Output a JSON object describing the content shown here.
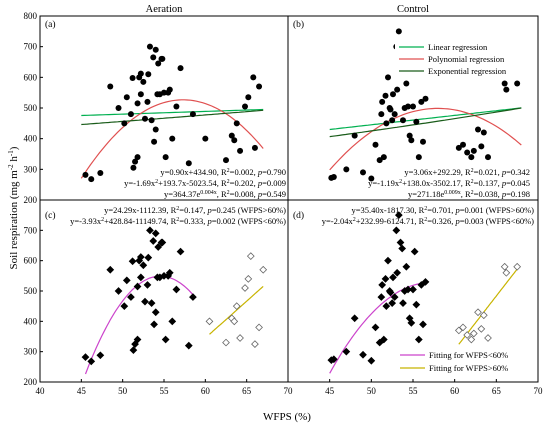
{
  "figure": {
    "ylabel_base": "Soil respiration (mg m",
    "ylabel_sup1": "-2",
    "ylabel_mid": " h",
    "ylabel_sup2": "-1",
    "ylabel_end": ")",
    "xlabel": "WFPS (%)"
  },
  "chart_data": [
    {
      "id": "a",
      "type": "scatter",
      "title": "Aeration",
      "panel_label": "(a)",
      "xlim": [
        40,
        70
      ],
      "ylim": [
        200,
        800
      ],
      "yticks": [
        200,
        300,
        400,
        500,
        600,
        700,
        800
      ],
      "points": [
        [
          45.5,
          282
        ],
        [
          46.2,
          268
        ],
        [
          47.3,
          288
        ],
        [
          48.5,
          570
        ],
        [
          49.5,
          500
        ],
        [
          50.2,
          450
        ],
        [
          50.5,
          535
        ],
        [
          51,
          480
        ],
        [
          51.2,
          598
        ],
        [
          51.3,
          305
        ],
        [
          51.5,
          325
        ],
        [
          51.8,
          340
        ],
        [
          51.8,
          515
        ],
        [
          52,
          600
        ],
        [
          52.2,
          545
        ],
        [
          52.2,
          612
        ],
        [
          52.5,
          585
        ],
        [
          52.7,
          465
        ],
        [
          53,
          520
        ],
        [
          53.1,
          610
        ],
        [
          53.3,
          700
        ],
        [
          53.5,
          460
        ],
        [
          53.7,
          665
        ],
        [
          53.8,
          390
        ],
        [
          54,
          690
        ],
        [
          54,
          430
        ],
        [
          54.2,
          545
        ],
        [
          54.3,
          645
        ],
        [
          54.5,
          545
        ],
        [
          54.7,
          660
        ],
        [
          54.8,
          660
        ],
        [
          55,
          550
        ],
        [
          55.2,
          340
        ],
        [
          55.5,
          550
        ],
        [
          55.7,
          560
        ],
        [
          56,
          400
        ],
        [
          56.5,
          505
        ],
        [
          57,
          630
        ],
        [
          58,
          320
        ],
        [
          58.5,
          480
        ],
        [
          60,
          400
        ],
        [
          62.5,
          330
        ],
        [
          63.2,
          410
        ],
        [
          63.5,
          395
        ],
        [
          63.8,
          450
        ],
        [
          64.2,
          360
        ],
        [
          64.8,
          505
        ],
        [
          65.2,
          535
        ],
        [
          65.8,
          600
        ],
        [
          66,
          370
        ],
        [
          66.5,
          570
        ]
      ],
      "fits": [
        {
          "name": "Linear regression",
          "color": "#00b050",
          "equation": "y=0.90x+434.90, R²=0.002, p=0.790"
        },
        {
          "name": "Polynomial regression",
          "color": "#e05050",
          "equation": "y=-1.69x²+193.7x-5023.54, R²=0.202, p=0.009"
        },
        {
          "name": "Exponential regression",
          "color": "#1a5c1a",
          "equation": "y=364.37e⁰·⁰⁰⁴ˣ, R²=0.008, p=0.549"
        }
      ],
      "eq_lines": [
        {
          "a": "y=0.90x+434.90, R",
          "b": "=0.002, ",
          "p": "p",
          "c": "=0.790"
        },
        {
          "a": "y=-1.69x",
          "a2": "+193.7x-5023.54, R",
          "b": "=0.202, ",
          "p": "p",
          "c": "=0.009"
        },
        {
          "a": "y=364.37e",
          "e": "0.004x",
          "a2": ", R",
          "b": "=0.008, ",
          "p": "p",
          "c": "=0.549"
        }
      ]
    },
    {
      "id": "b",
      "type": "scatter",
      "title": "Control",
      "panel_label": "(b)",
      "xlim": [
        40,
        70
      ],
      "ylim": [
        200,
        800
      ],
      "points": [
        [
          45.2,
          272
        ],
        [
          45.5,
          275
        ],
        [
          47,
          300
        ],
        [
          48,
          410
        ],
        [
          49,
          290
        ],
        [
          50,
          270
        ],
        [
          50.5,
          380
        ],
        [
          51,
          330
        ],
        [
          51.2,
          480
        ],
        [
          51.3,
          520
        ],
        [
          51.5,
          340
        ],
        [
          51.7,
          540
        ],
        [
          51.8,
          450
        ],
        [
          52,
          600
        ],
        [
          52.2,
          500
        ],
        [
          52.3,
          495
        ],
        [
          52.5,
          460
        ],
        [
          52.6,
          545
        ],
        [
          52.8,
          480
        ],
        [
          53,
          700
        ],
        [
          53.1,
          560
        ],
        [
          53.3,
          750
        ],
        [
          53.5,
          660
        ],
        [
          53.7,
          640
        ],
        [
          53.8,
          460
        ],
        [
          54,
          500
        ],
        [
          54.2,
          580
        ],
        [
          54.4,
          505
        ],
        [
          54.6,
          410
        ],
        [
          54.8,
          395
        ],
        [
          55,
          505
        ],
        [
          55.2,
          630
        ],
        [
          55.4,
          455
        ],
        [
          55.7,
          340
        ],
        [
          56,
          520
        ],
        [
          56.2,
          390
        ],
        [
          56.5,
          530
        ],
        [
          60.5,
          370
        ],
        [
          61,
          380
        ],
        [
          61.5,
          355
        ],
        [
          62,
          340
        ],
        [
          62.3,
          360
        ],
        [
          62.8,
          430
        ],
        [
          63.2,
          375
        ],
        [
          63.5,
          420
        ],
        [
          64,
          340
        ],
        [
          66,
          580
        ],
        [
          66.2,
          560
        ],
        [
          67.5,
          580
        ]
      ],
      "legend": [
        "Linear regression",
        "Polynomial regression",
        "Exponential regression"
      ],
      "eq_lines": [
        {
          "a": "y=3.06x+292.29, R",
          "b": "=0.021, ",
          "p": "p",
          "c": "=0.342"
        },
        {
          "a": "y=-1.19x",
          "a2": "+138.0x-3502.17, R",
          "b": "=0.137, ",
          "p": "p",
          "c": "=0.045"
        },
        {
          "a": "y=271.18e",
          "e": "0.009x",
          "a2": ", R",
          "b": "=0.038, ",
          "p": "p",
          "c": "=0.198"
        }
      ]
    },
    {
      "id": "c",
      "type": "scatter",
      "panel_label": "(c)",
      "xlim": [
        40,
        70
      ],
      "ylim": [
        200,
        800
      ],
      "xticks": [
        40,
        45,
        50,
        55,
        60,
        65,
        70
      ],
      "yticks": [
        200,
        300,
        400,
        500,
        600,
        700
      ],
      "filled": [
        [
          45.5,
          282
        ],
        [
          46.2,
          268
        ],
        [
          47.3,
          288
        ],
        [
          48.5,
          570
        ],
        [
          49.5,
          500
        ],
        [
          50.2,
          450
        ],
        [
          50.5,
          535
        ],
        [
          51,
          480
        ],
        [
          51.2,
          598
        ],
        [
          51.3,
          305
        ],
        [
          51.5,
          325
        ],
        [
          51.8,
          340
        ],
        [
          51.8,
          515
        ],
        [
          52,
          600
        ],
        [
          52.2,
          545
        ],
        [
          52.2,
          612
        ],
        [
          52.5,
          585
        ],
        [
          52.7,
          465
        ],
        [
          53,
          520
        ],
        [
          53.1,
          610
        ],
        [
          53.3,
          700
        ],
        [
          53.5,
          460
        ],
        [
          53.7,
          665
        ],
        [
          53.8,
          390
        ],
        [
          54,
          690
        ],
        [
          54,
          430
        ],
        [
          54.2,
          545
        ],
        [
          54.3,
          645
        ],
        [
          54.5,
          545
        ],
        [
          54.7,
          660
        ],
        [
          54.8,
          660
        ],
        [
          55,
          550
        ],
        [
          55.2,
          340
        ],
        [
          55.5,
          550
        ],
        [
          55.7,
          560
        ],
        [
          56,
          400
        ],
        [
          56.5,
          505
        ],
        [
          57,
          630
        ],
        [
          58,
          320
        ],
        [
          58.5,
          480
        ]
      ],
      "open": [
        [
          60.5,
          400
        ],
        [
          62.5,
          330
        ],
        [
          63.2,
          410
        ],
        [
          63.5,
          400
        ],
        [
          63.8,
          450
        ],
        [
          64.2,
          345
        ],
        [
          64.8,
          510
        ],
        [
          65.2,
          540
        ],
        [
          65.5,
          615
        ],
        [
          66,
          325
        ],
        [
          66.5,
          380
        ],
        [
          67,
          570
        ]
      ],
      "eq_lines": [
        {
          "a": "y=24.29x-1112.39, R",
          "b": "=0.147, ",
          "p": "p",
          "c": "=0.245 (WFPS>60%)"
        },
        {
          "a": "y=-3.93x",
          "a2": "+428.84-11149.74, R",
          "b": "=0.333, ",
          "p": "p",
          "c": "=0.002 (WFPS<60%)"
        }
      ]
    },
    {
      "id": "d",
      "type": "scatter",
      "panel_label": "(d)",
      "xlim": [
        40,
        70
      ],
      "ylim": [
        200,
        800
      ],
      "xticks": [
        45,
        50,
        55,
        60,
        65,
        70
      ],
      "filled": [
        [
          45.2,
          272
        ],
        [
          45.5,
          275
        ],
        [
          47,
          300
        ],
        [
          48,
          410
        ],
        [
          49,
          290
        ],
        [
          50,
          270
        ],
        [
          50.5,
          380
        ],
        [
          51,
          330
        ],
        [
          51.2,
          480
        ],
        [
          51.3,
          520
        ],
        [
          51.5,
          340
        ],
        [
          51.7,
          540
        ],
        [
          51.8,
          450
        ],
        [
          52,
          600
        ],
        [
          52.2,
          500
        ],
        [
          52.3,
          495
        ],
        [
          52.5,
          460
        ],
        [
          52.6,
          545
        ],
        [
          52.8,
          480
        ],
        [
          53,
          700
        ],
        [
          53.1,
          560
        ],
        [
          53.3,
          750
        ],
        [
          53.5,
          660
        ],
        [
          53.7,
          640
        ],
        [
          53.8,
          460
        ],
        [
          54,
          500
        ],
        [
          54.2,
          580
        ],
        [
          54.4,
          505
        ],
        [
          54.6,
          410
        ],
        [
          54.8,
          395
        ],
        [
          55,
          505
        ],
        [
          55.2,
          630
        ],
        [
          55.4,
          455
        ],
        [
          55.7,
          340
        ],
        [
          56,
          520
        ],
        [
          56.2,
          390
        ],
        [
          56.5,
          530
        ]
      ],
      "open": [
        [
          60.5,
          370
        ],
        [
          61,
          380
        ],
        [
          61.5,
          355
        ],
        [
          62,
          340
        ],
        [
          62.3,
          360
        ],
        [
          62.8,
          430
        ],
        [
          63.2,
          375
        ],
        [
          63.5,
          420
        ],
        [
          64,
          345
        ],
        [
          66,
          580
        ],
        [
          66.2,
          560
        ],
        [
          67.5,
          580
        ]
      ],
      "legend": [
        "Fitting for WFPS<60%",
        "Fitting for WFPS>60%"
      ],
      "eq_lines": [
        {
          "a": "y=35.40x-1817.30, R",
          "b": "=0.701, ",
          "p": "p",
          "c": "=0.001 (WFPS>60%)"
        },
        {
          "a": "y=-2.04x",
          "a2": "+232.99-6124.71, R",
          "b": "=0.326, ",
          "p": "p",
          "c": "=0.003 (WFPS<60%)"
        }
      ]
    }
  ],
  "colors": {
    "linear": "#00b050",
    "polynomial": "#e05050",
    "exponential": "#1a5c1a",
    "fit_low": "#cc44cc",
    "fit_high": "#c8b400"
  }
}
